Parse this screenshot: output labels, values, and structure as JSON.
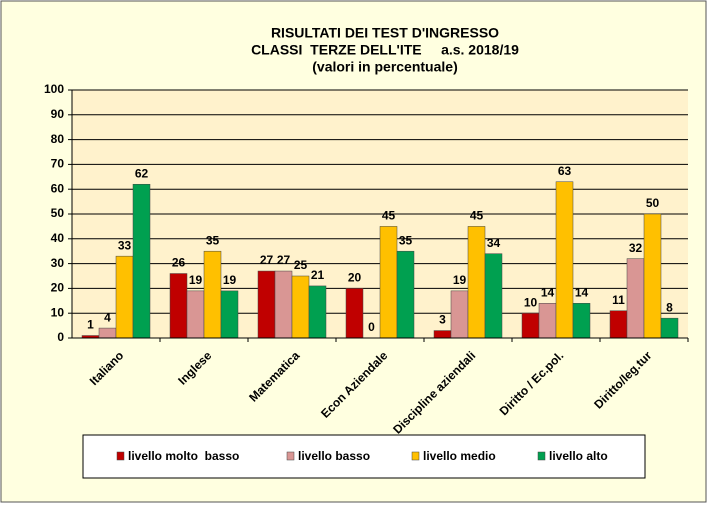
{
  "chart_data": {
    "type": "bar",
    "title": [
      "RISULTATI DEI TEST D'INGRESSO",
      "CLASSI  TERZE DELL'ITE     a.s. 2018/19",
      "(valori in percentuale)"
    ],
    "categories": [
      "Italiano",
      "Inglese",
      "Matematica",
      "Econ Aziendale",
      "Discipline aziendali",
      "Diritto / Ec.pol.",
      "Diritto/leg.tur"
    ],
    "series": [
      {
        "name": "livello molto  basso",
        "color": "#c00000",
        "values": [
          1,
          26,
          27,
          20,
          3,
          10,
          11
        ]
      },
      {
        "name": "livello basso",
        "color": "#d99694",
        "values": [
          4,
          19,
          27,
          0,
          19,
          14,
          32
        ]
      },
      {
        "name": "livello medio",
        "color": "#ffc000",
        "values": [
          33,
          35,
          25,
          45,
          45,
          63,
          50
        ]
      },
      {
        "name": "livello alto",
        "color": "#00a050",
        "values": [
          62,
          19,
          21,
          35,
          34,
          14,
          8
        ]
      }
    ],
    "ylim": [
      0,
      100
    ],
    "yticks": [
      0,
      10,
      20,
      30,
      40,
      50,
      60,
      70,
      80,
      90,
      100
    ],
    "grid": true,
    "legend": "bottom"
  }
}
